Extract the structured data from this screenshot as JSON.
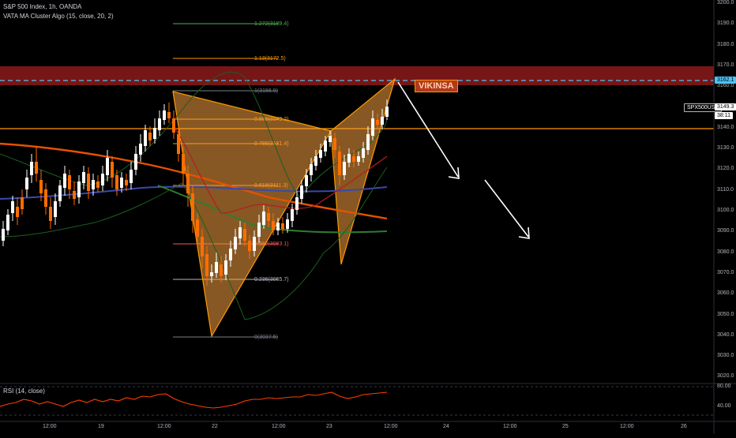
{
  "header": {
    "symbol_line": "S&P 500 Index, 1h, OANDA",
    "indicator_line": "VATA MA Cluster Algo (15, close, 20, 2)"
  },
  "rsi": {
    "label": "RSI (14, close)",
    "levels": [
      "80.00",
      "40.00"
    ]
  },
  "price_axis": {
    "ticks": [
      "3200.0",
      "3190.0",
      "3180.0",
      "3170.0",
      "3160.0",
      "3150.0",
      "3140.0",
      "3130.0",
      "3120.0",
      "3110.0",
      "3100.0",
      "3090.0",
      "3080.0",
      "3070.0",
      "3060.0",
      "3050.0",
      "3040.0",
      "3030.0",
      "3020.0"
    ],
    "tags": {
      "resistance": "3162.1",
      "symbol": "SPX500USD",
      "last_price": "3149.3",
      "countdown": "38:11"
    }
  },
  "time_axis": {
    "ticks": [
      "12:00",
      "19",
      "12:00",
      "22",
      "12:00",
      "23",
      "12:00",
      "24",
      "12:00",
      "25",
      "12:00",
      "26"
    ]
  },
  "fib_levels": [
    {
      "label": "1.272(3189.4)",
      "color": "#4caf50"
    },
    {
      "label": "1.13(3172.5)",
      "color": "#ff9800"
    },
    {
      "label": "1(3156.9)",
      "color": "#787b86"
    },
    {
      "label": "0.886(3143.2)",
      "color": "#ff9800"
    },
    {
      "label": "0.786(3131.4)",
      "color": "#ff9800"
    },
    {
      "label": "0.618(3111.3)",
      "color": "#ff9800"
    },
    {
      "label": "0.382(3083.1)",
      "color": "#ff5252"
    },
    {
      "label": "0.236(3065.7)",
      "color": "#b2b5be"
    },
    {
      "label": "0(3037.5)",
      "color": "#787b86"
    }
  ],
  "annotations": {
    "brand_tag": "VIKINSA"
  },
  "colors": {
    "background": "#000000",
    "up_candle": "#ffffff",
    "down_candle": "#ff6d00",
    "pattern_fill": "#f5a040",
    "resistance_zone": "#8b1a1a",
    "dashed_line": "#4fc3f7",
    "orange_line": "#ff9800",
    "arrow": "#ffffff"
  }
}
